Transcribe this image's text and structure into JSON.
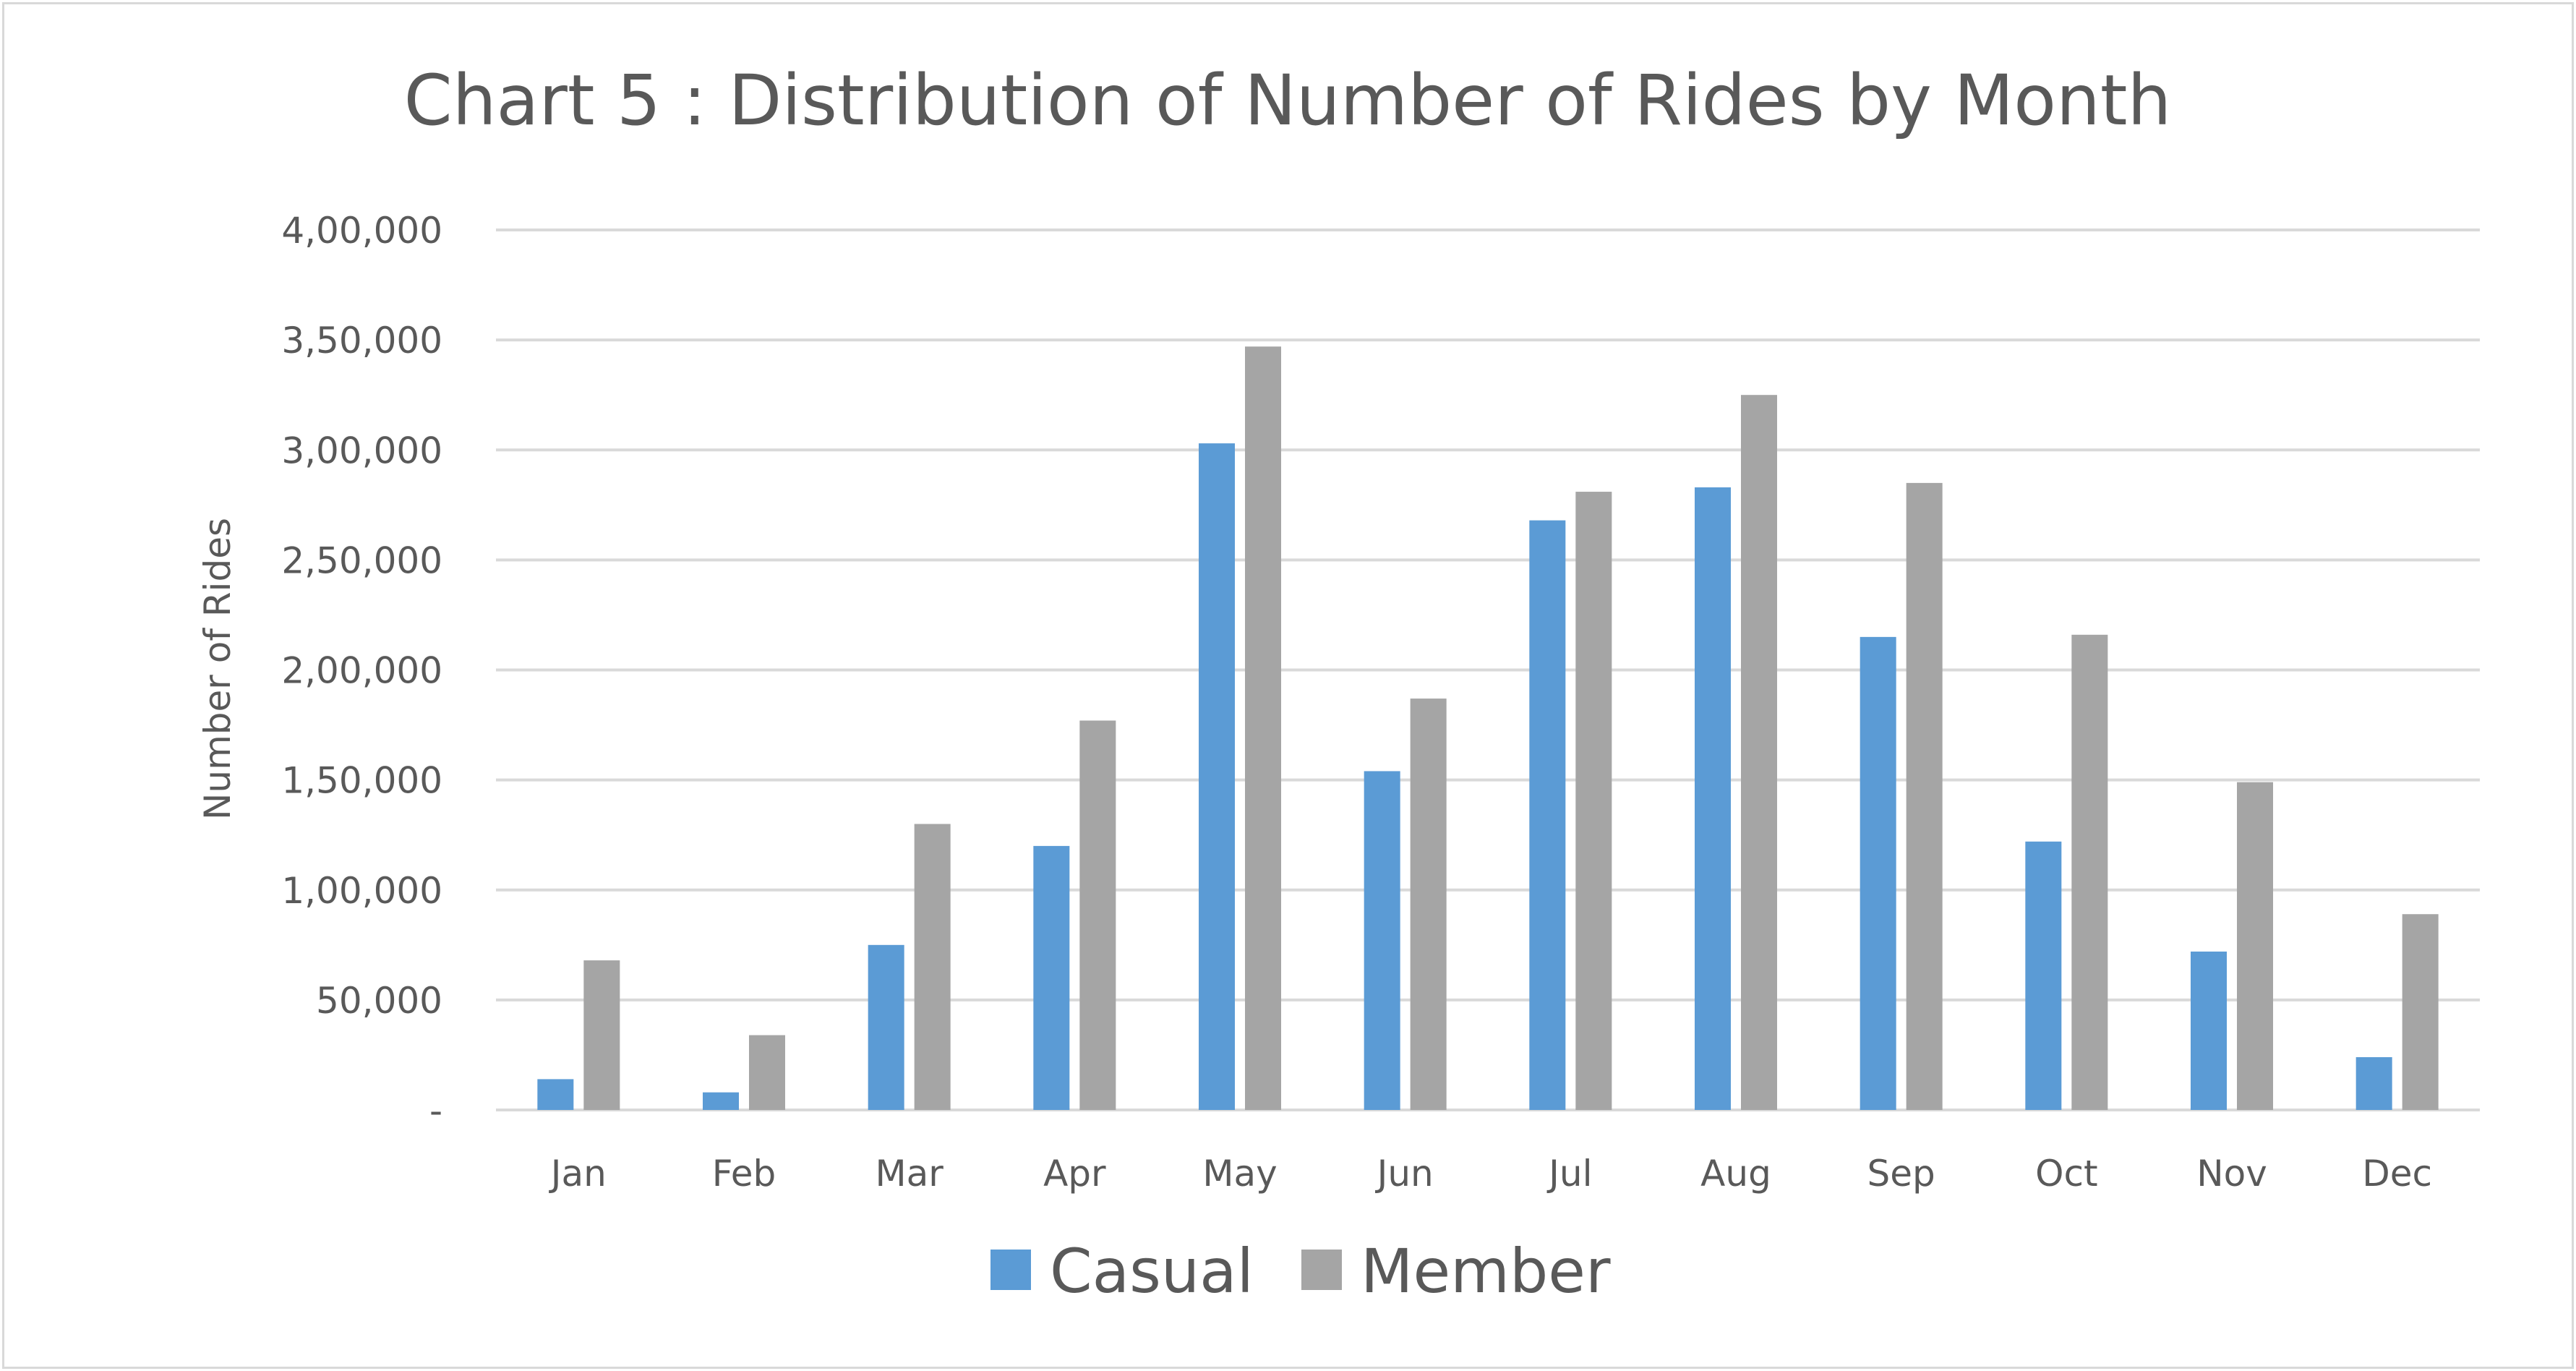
{
  "chart_data": {
    "type": "bar",
    "title": "Chart 5 : Distribution of Number of Rides by Month",
    "xlabel": "",
    "ylabel": "Number of Rides",
    "categories": [
      "Jan",
      "Feb",
      "Mar",
      "Apr",
      "May",
      "Jun",
      "Jul",
      "Aug",
      "Sep",
      "Oct",
      "Nov",
      "Dec"
    ],
    "series": [
      {
        "name": "Casual",
        "color": "#5b9bd5",
        "values": [
          14000,
          8000,
          75000,
          120000,
          303000,
          154000,
          268000,
          283000,
          215000,
          122000,
          72000,
          24000
        ]
      },
      {
        "name": "Member",
        "color": "#a5a5a5",
        "values": [
          68000,
          34000,
          130000,
          177000,
          347000,
          187000,
          281000,
          325000,
          285000,
          216000,
          149000,
          89000
        ]
      }
    ],
    "ylim": [
      0,
      400000
    ],
    "yticks": [
      {
        "value": 0,
        "label": "-"
      },
      {
        "value": 50000,
        "label": "50,000"
      },
      {
        "value": 100000,
        "label": "1,00,000"
      },
      {
        "value": 150000,
        "label": "1,50,000"
      },
      {
        "value": 200000,
        "label": "2,00,000"
      },
      {
        "value": 250000,
        "label": "2,50,000"
      },
      {
        "value": 300000,
        "label": "3,00,000"
      },
      {
        "value": 350000,
        "label": "3,50,000"
      },
      {
        "value": 400000,
        "label": "4,00,000"
      }
    ],
    "grid": true,
    "gridline_color": "#d9d9d9",
    "legend_position": "bottom"
  }
}
